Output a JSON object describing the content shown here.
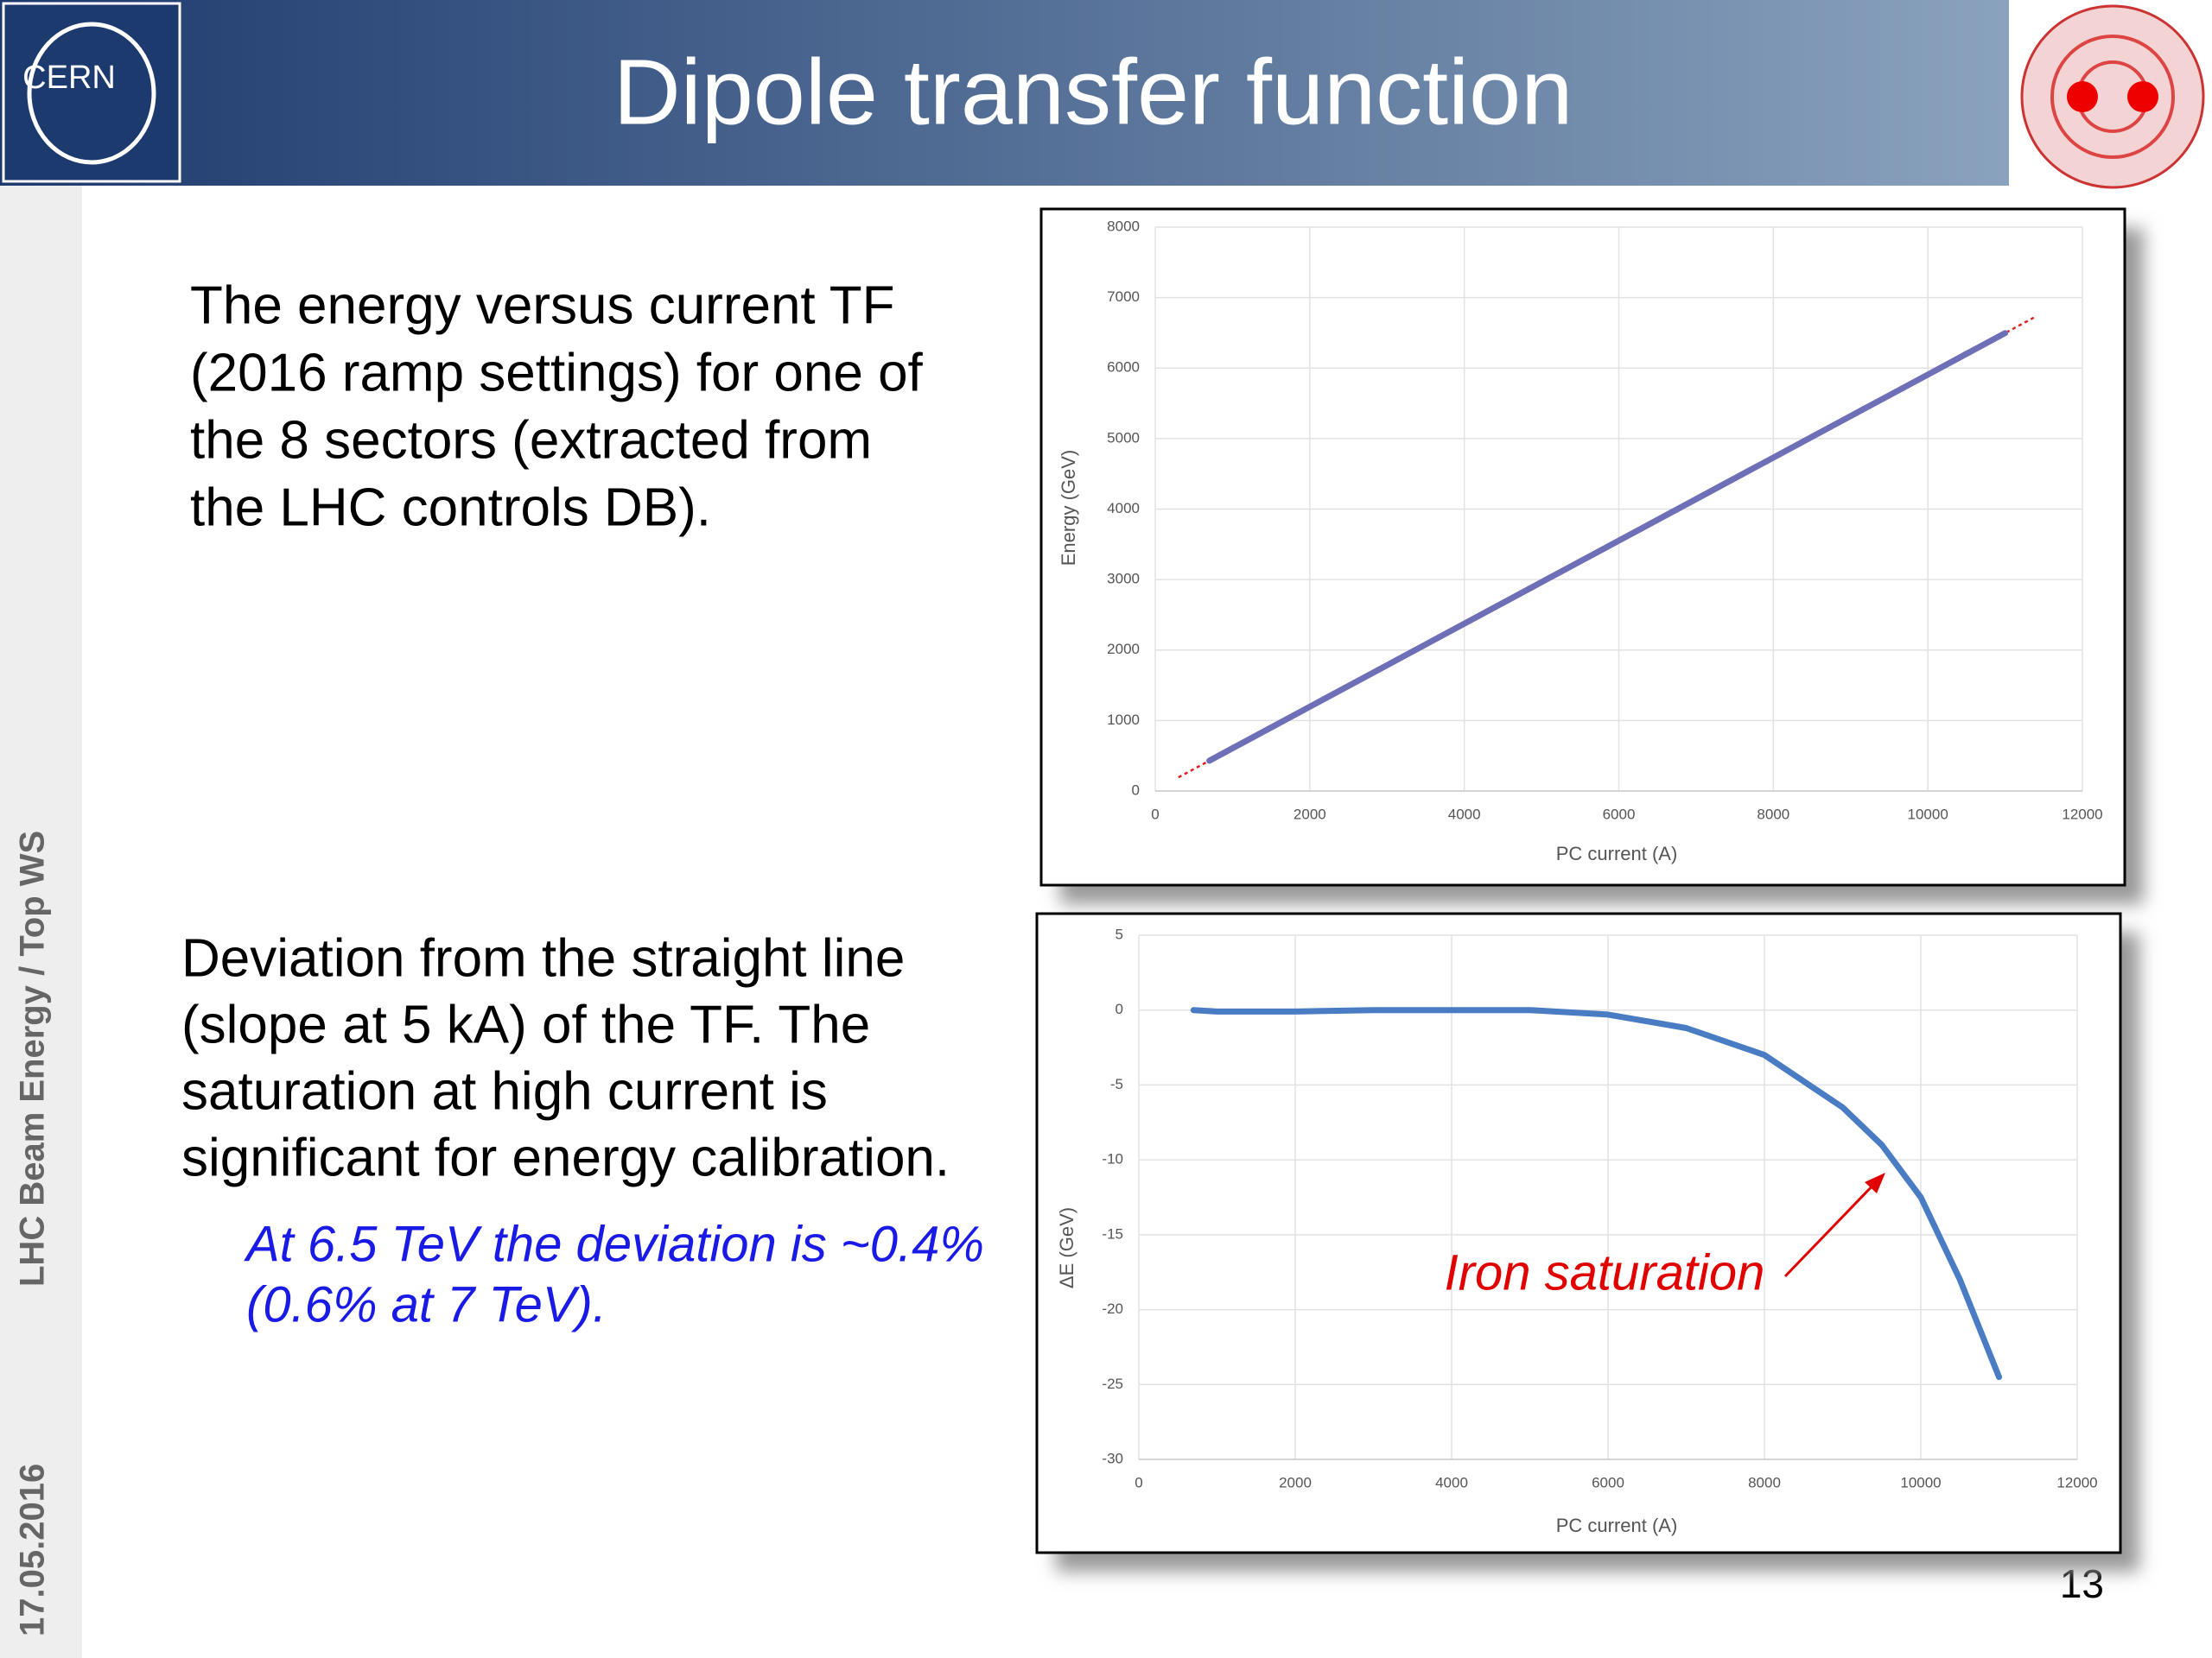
{
  "header": {
    "title": "Dipole transfer function",
    "logo_text": "CERN"
  },
  "sidebar": {
    "event": "LHC Beam Energy / Top WS",
    "date": "17.05.2016"
  },
  "text": {
    "paragraph_1": [
      "The energy versus current TF",
      "(2016 ramp settings) for one of",
      "the 8 sectors (extracted from",
      "the LHC controls DB)."
    ],
    "paragraph_2": [
      "Deviation from the straight line",
      "(slope at 5 kA) of the TF. The",
      "saturation at high current is",
      "significant for energy calibration."
    ],
    "note": [
      "At 6.5 TeV the deviation is ~0.4%",
      "(0.6% at 7 TeV)."
    ]
  },
  "page_number": "13",
  "chart_data": [
    {
      "type": "scatter",
      "x_label": "PC current (A)",
      "y_label": "Energy (GeV)",
      "x": [
        700,
        1000,
        2000,
        3000,
        4000,
        5000,
        6000,
        7000,
        8000,
        9000,
        10000,
        11000
      ],
      "values": [
        430,
        607,
        1196,
        1785,
        2374,
        2963,
        3552,
        4141,
        4730,
        5319,
        5908,
        6497
      ],
      "color": "#6f6fb8",
      "trendline": {
        "x": [
          300,
          11400
        ],
        "values": [
          194,
          6733
        ],
        "color": "#e02020"
      },
      "xlim": [
        0,
        12000
      ],
      "xticks": [
        0,
        2000,
        4000,
        6000,
        8000,
        10000,
        12000
      ],
      "ylim": [
        0,
        8000
      ],
      "yticks": [
        0,
        1000,
        2000,
        3000,
        4000,
        5000,
        6000,
        7000,
        8000
      ],
      "grid": true
    },
    {
      "type": "scatter",
      "x_label": "PC current (A)",
      "y_label": "ΔE (GeV)",
      "x": [
        700,
        1000,
        2000,
        3000,
        4000,
        5000,
        6000,
        7000,
        8000,
        9000,
        9500,
        10000,
        10500,
        11000
      ],
      "values": [
        0,
        -0.1,
        -0.1,
        0,
        0,
        0,
        -0.3,
        -1.2,
        -3,
        -6.5,
        -9,
        -12.5,
        -18,
        -24.5
      ],
      "color": "#4a7cc4",
      "annotation": {
        "text": "Iron saturation",
        "color": "#e00000"
      },
      "xlim": [
        0,
        12000
      ],
      "xticks": [
        0,
        2000,
        4000,
        6000,
        8000,
        10000,
        12000
      ],
      "ylim": [
        -30,
        5
      ],
      "yticks": [
        -30,
        -25,
        -20,
        -15,
        -10,
        -5,
        0,
        5
      ],
      "grid": true
    }
  ]
}
